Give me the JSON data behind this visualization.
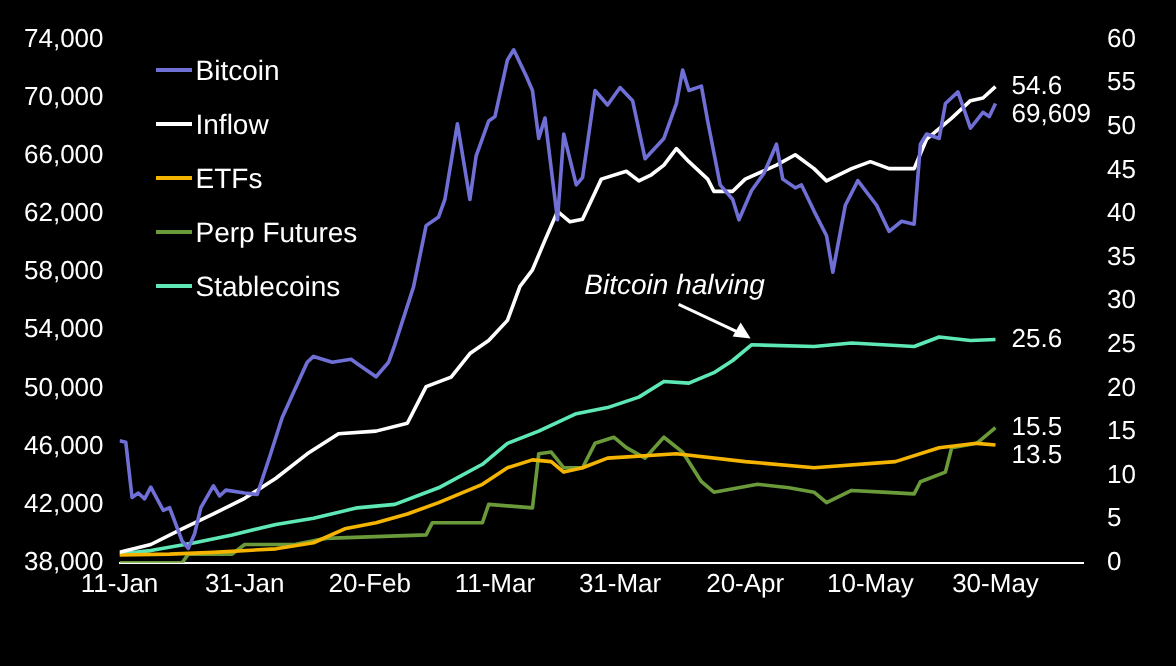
{
  "chart_data": {
    "type": "line",
    "xlim": [
      "--01-11",
      "--06-13"
    ],
    "xticks": [
      {
        "value": "--01-11",
        "label": "11-Jan"
      },
      {
        "value": "--01-31",
        "label": "31-Jan"
      },
      {
        "value": "--02-20",
        "label": "20-Feb"
      },
      {
        "value": "--03-11",
        "label": "11-Mar"
      },
      {
        "value": "--03-31",
        "label": "31-Mar"
      },
      {
        "value": "--04-20",
        "label": "20-Apr"
      },
      {
        "value": "--05-10",
        "label": "10-May"
      },
      {
        "value": "--05-30",
        "label": "30-May"
      }
    ],
    "ylim": [
      38000,
      74000
    ],
    "yticks": [
      {
        "value": 38000,
        "label": "38,000"
      },
      {
        "value": 42000,
        "label": "42,000"
      },
      {
        "value": 46000,
        "label": "46,000"
      },
      {
        "value": 50000,
        "label": "50,000"
      },
      {
        "value": 54000,
        "label": "54,000"
      },
      {
        "value": 58000,
        "label": "58,000"
      },
      {
        "value": 62000,
        "label": "62,000"
      },
      {
        "value": 66000,
        "label": "66,000"
      },
      {
        "value": 70000,
        "label": "70,000"
      },
      {
        "value": 74000,
        "label": "74,000"
      }
    ],
    "y2lim": [
      0,
      60
    ],
    "y2ticks": [
      0,
      5,
      10,
      15,
      20,
      25,
      30,
      35,
      40,
      45,
      50,
      55,
      60
    ],
    "legend": "top left",
    "marker": "none",
    "line_style": "solid",
    "annotations": [
      "Bitcoin halving"
    ],
    "series": [
      {
        "name": "Bitcoin",
        "color": "#6f6fd6",
        "x": [
          "--01-11",
          "--01-12",
          "--01-13",
          "--01-14",
          "--01-15",
          "--01-16",
          "--01-18",
          "--01-19",
          "--01-21",
          "--01-22",
          "--01-23",
          "--01-24",
          "--01-26",
          "--01-27",
          "--01-28",
          "--01-31",
          "--02-02",
          "--02-04",
          "--02-06",
          "--02-08",
          "--02-10",
          "--02-11",
          "--02-14",
          "--02-17",
          "--02-18",
          "--02-21",
          "--02-23",
          "--02-24",
          "--02-27",
          "--02-29",
          "--03-02",
          "--03-03",
          "--03-05",
          "--03-07",
          "--03-08",
          "--03-10",
          "--03-11",
          "--03-13",
          "--03-14",
          "--03-16",
          "--03-17",
          "--03-18",
          "--03-19",
          "--03-21",
          "--03-22",
          "--03-24",
          "--03-25",
          "--03-27",
          "--03-29",
          "--03-31",
          "--04-02",
          "--04-04",
          "--04-07",
          "--04-09",
          "--04-10",
          "--04-11",
          "--04-13",
          "--04-14",
          "--04-16",
          "--04-18",
          "--04-19",
          "--04-21",
          "--04-23",
          "--04-25",
          "--04-26",
          "--04-28",
          "--04-29",
          "--05-01",
          "--05-03",
          "--05-04",
          "--05-06",
          "--05-08",
          "--05-11",
          "--05-13",
          "--05-15",
          "--05-17",
          "--05-18",
          "--05-19",
          "--05-21",
          "--05-22",
          "--05-24",
          "--05-26",
          "--05-28",
          "--05-29",
          "--05-30"
        ],
        "values": [
          46400,
          46300,
          42500,
          42800,
          42400,
          43200,
          41600,
          41800,
          39500,
          39000,
          40000,
          41800,
          43300,
          42600,
          43000,
          42800,
          42700,
          45300,
          48000,
          49900,
          51800,
          52200,
          51800,
          52000,
          51700,
          50800,
          51800,
          53000,
          57000,
          61200,
          61800,
          63000,
          68200,
          63000,
          66000,
          68400,
          68700,
          72600,
          73300,
          71500,
          70500,
          67200,
          68600,
          61600,
          67500,
          64000,
          64500,
          70500,
          69500,
          70700,
          69800,
          65800,
          67200,
          69600,
          71900,
          70500,
          70800,
          68400,
          64000,
          63000,
          61600,
          63600,
          64800,
          66800,
          64400,
          63800,
          64000,
          62200,
          60500,
          58000,
          62600,
          64300,
          62600,
          60800,
          61500,
          61300,
          66800,
          67500,
          67200,
          69600,
          70400,
          67900,
          69000,
          68700,
          69609
        ],
        "value_labels": [
          null,
          null,
          null,
          null,
          null,
          null,
          null,
          null,
          null,
          null,
          null,
          null,
          null,
          null,
          null,
          null,
          null,
          null,
          null,
          null,
          null,
          null,
          null,
          null,
          null,
          null,
          null,
          null,
          null,
          null,
          null,
          null,
          null,
          null,
          null,
          null,
          null,
          null,
          null,
          null,
          null,
          null,
          null,
          null,
          null,
          null,
          null,
          null,
          null,
          null,
          null,
          null,
          null,
          null,
          null,
          null,
          null,
          null,
          null,
          null,
          null,
          null,
          null,
          null,
          null,
          null,
          null,
          null,
          null,
          null,
          null,
          null,
          null,
          null,
          null,
          null,
          null,
          null,
          null,
          null,
          null,
          null,
          null,
          null,
          "69,609"
        ]
      },
      {
        "name": "Inflow",
        "color": "#ffffff",
        "axis": "y2",
        "x": [
          "--01-11",
          "--01-16",
          "--01-21",
          "--01-26",
          "--01-31",
          "--02-05",
          "--02-10",
          "--02-15",
          "--02-21",
          "--02-26",
          "--02-29",
          "--03-04",
          "--03-07",
          "--03-10",
          "--03-13",
          "--03-15",
          "--03-17",
          "--03-19",
          "--03-21",
          "--03-23",
          "--03-25",
          "--03-28",
          "--04-01",
          "--04-03",
          "--04-05",
          "--04-07",
          "--04-09",
          "--04-11",
          "--04-14",
          "--04-15",
          "--04-18",
          "--04-20",
          "--04-25",
          "--04-28",
          "--05-01",
          "--05-03",
          "--05-07",
          "--05-10",
          "--05-13",
          "--05-17",
          "--05-19",
          "--05-21",
          "--05-23",
          "--05-26",
          "--05-28",
          "--05-30"
        ],
        "values": [
          1.2,
          2.1,
          3.9,
          5.6,
          7.4,
          9.7,
          12.5,
          14.8,
          15.1,
          16,
          20.2,
          21.3,
          24,
          25.5,
          27.8,
          31.7,
          33.6,
          37,
          40.3,
          39.1,
          39.4,
          44,
          44.9,
          43.8,
          44.5,
          45.6,
          47.5,
          46,
          44,
          42.6,
          42.6,
          44,
          45.6,
          46.8,
          45.2,
          43.8,
          45.2,
          46,
          45.2,
          45.2,
          48.6,
          49.8,
          51,
          53,
          53.3,
          54.6
        ],
        "value_labels": [
          null,
          null,
          null,
          null,
          null,
          null,
          null,
          null,
          null,
          null,
          null,
          null,
          null,
          null,
          null,
          null,
          null,
          null,
          null,
          null,
          null,
          null,
          null,
          null,
          null,
          null,
          null,
          null,
          null,
          null,
          null,
          null,
          null,
          null,
          null,
          null,
          null,
          null,
          null,
          null,
          null,
          null,
          null,
          null,
          null,
          "54.6"
        ]
      },
      {
        "name": "ETFs",
        "color": "#f5b400",
        "axis": "y2",
        "x": [
          "--01-11",
          "--01-19",
          "--01-26",
          "--02-05",
          "--02-11",
          "--02-16",
          "--02-21",
          "--02-26",
          "--03-02",
          "--03-09",
          "--03-13",
          "--03-17",
          "--03-20",
          "--03-22",
          "--03-25",
          "--03-29",
          "--04-09",
          "--04-20",
          "--05-01",
          "--05-14",
          "--05-21",
          "--05-27",
          "--05-30"
        ],
        "values": [
          0.9,
          1,
          1.2,
          1.6,
          2.3,
          3.9,
          4.6,
          5.6,
          6.9,
          9,
          10.9,
          11.8,
          11.6,
          10.4,
          10.9,
          12,
          12.5,
          11.6,
          10.9,
          11.6,
          13.2,
          13.7,
          13.5
        ],
        "value_labels": [
          null,
          null,
          null,
          null,
          null,
          null,
          null,
          null,
          null,
          null,
          null,
          null,
          null,
          null,
          null,
          null,
          null,
          null,
          null,
          null,
          null,
          null,
          "13.5"
        ]
      },
      {
        "name": "Perp Futures",
        "color": "#6a9a3a",
        "axis": "y2",
        "x": [
          "--01-11",
          "--01-21",
          "--01-22",
          "--01-29",
          "--01-31",
          "--02-08",
          "--02-13",
          "--02-29",
          "--03-01",
          "--03-09",
          "--03-10",
          "--03-17",
          "--03-18",
          "--03-20",
          "--03-22",
          "--03-25",
          "--03-27",
          "--03-30",
          "--04-01",
          "--04-04",
          "--04-07",
          "--04-10",
          "--04-13",
          "--04-15",
          "--04-22",
          "--04-27",
          "--05-01",
          "--05-03",
          "--05-07",
          "--05-12",
          "--05-17",
          "--05-18",
          "--05-22",
          "--05-23",
          "--05-27",
          "--05-30"
        ],
        "values": [
          0,
          0,
          1,
          1,
          2.1,
          2.1,
          2.8,
          3.2,
          4.6,
          4.6,
          6.7,
          6.3,
          12.5,
          12.7,
          10.9,
          10.9,
          13.7,
          14.4,
          13.2,
          12,
          14.4,
          12.7,
          9.3,
          8.1,
          9,
          8.6,
          8.1,
          6.9,
          8.3,
          8.1,
          7.9,
          9.3,
          10.4,
          13.2,
          13.7,
          15.5
        ],
        "value_labels": [
          null,
          null,
          null,
          null,
          null,
          null,
          null,
          null,
          null,
          null,
          null,
          null,
          null,
          null,
          null,
          null,
          null,
          null,
          null,
          null,
          null,
          null,
          null,
          null,
          null,
          null,
          null,
          null,
          null,
          null,
          null,
          null,
          null,
          null,
          null,
          "15.5"
        ]
      },
      {
        "name": "Stablecoins",
        "color": "#5ee8b5",
        "axis": "y2",
        "x": [
          "--01-11",
          "--01-16",
          "--01-23",
          "--01-29",
          "--02-05",
          "--02-11",
          "--02-18",
          "--02-24",
          "--03-02",
          "--03-09",
          "--03-13",
          "--03-18",
          "--03-24",
          "--03-29",
          "--04-03",
          "--04-07",
          "--04-11",
          "--04-15",
          "--04-18",
          "--04-21",
          "--05-01",
          "--05-07",
          "--05-17",
          "--05-21",
          "--05-26",
          "--05-30"
        ],
        "values": [
          1,
          1.4,
          2.3,
          3.2,
          4.4,
          5.1,
          6.3,
          6.7,
          8.6,
          11.3,
          13.7,
          15.1,
          17.1,
          17.8,
          19,
          20.8,
          20.6,
          21.8,
          23.2,
          25,
          24.8,
          25.2,
          24.8,
          25.9,
          25.5,
          25.6
        ],
        "value_labels": [
          null,
          null,
          null,
          null,
          null,
          null,
          null,
          null,
          null,
          null,
          null,
          null,
          null,
          null,
          null,
          null,
          null,
          null,
          null,
          null,
          null,
          null,
          null,
          null,
          null,
          "25.6"
        ]
      }
    ]
  }
}
